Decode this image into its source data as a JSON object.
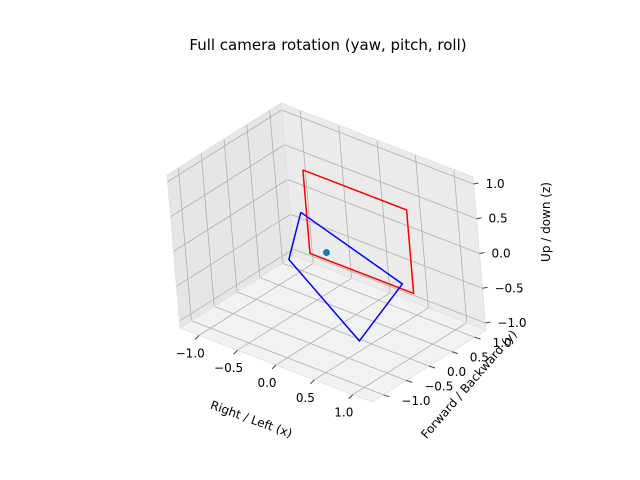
{
  "chart_data": {
    "type": "line3d",
    "title": "Full camera rotation (yaw, pitch, roll)",
    "xlabel": "Right / Left (x)",
    "ylabel": "Forward / Backward (y)",
    "zlabel": "Up / down (z)",
    "xlim": [
      -1.25,
      1.25
    ],
    "ylim": [
      -1.25,
      1.25
    ],
    "zlim": [
      -1.1,
      1.1
    ],
    "x_ticks": [
      -1.0,
      -0.5,
      0.0,
      0.5,
      1.0
    ],
    "y_ticks": [
      -1.0,
      -0.5,
      0.0,
      0.5,
      1.0
    ],
    "z_ticks": [
      -1.0,
      -0.5,
      0.0,
      0.5,
      1.0
    ],
    "x_tick_labels": [
      "−1.0",
      "−0.5",
      "0.0",
      "0.5",
      "1.0"
    ],
    "y_tick_labels": [
      "−1.0",
      "−0.5",
      "0.0",
      "0.5",
      "1.0"
    ],
    "z_tick_labels": [
      "−1.0",
      "−0.5",
      "0.0",
      "0.5",
      "1.0"
    ],
    "grid": true,
    "series": [
      {
        "kind": "polygon",
        "color": "#ff0000",
        "points": [
          [
            -0.45,
            0.35,
            0.85
          ],
          [
            0.9,
            0.35,
            0.85
          ],
          [
            0.9,
            0.35,
            -0.35
          ],
          [
            -0.45,
            0.35,
            -0.35
          ],
          [
            -0.45,
            0.35,
            0.85
          ]
        ]
      },
      {
        "kind": "polygon",
        "color": "#0000ff",
        "points": [
          [
            -0.3,
            0.0,
            0.45
          ],
          [
            0.5,
            0.75,
            -0.55
          ],
          [
            0.6,
            -0.4,
            -0.85
          ],
          [
            -0.45,
            -0.1,
            -0.25
          ],
          [
            -0.3,
            0.0,
            0.45
          ]
        ]
      },
      {
        "kind": "scatter",
        "color": "#1f77b4",
        "points": [
          [
            0.0,
            0.0,
            0.0
          ]
        ]
      }
    ]
  }
}
